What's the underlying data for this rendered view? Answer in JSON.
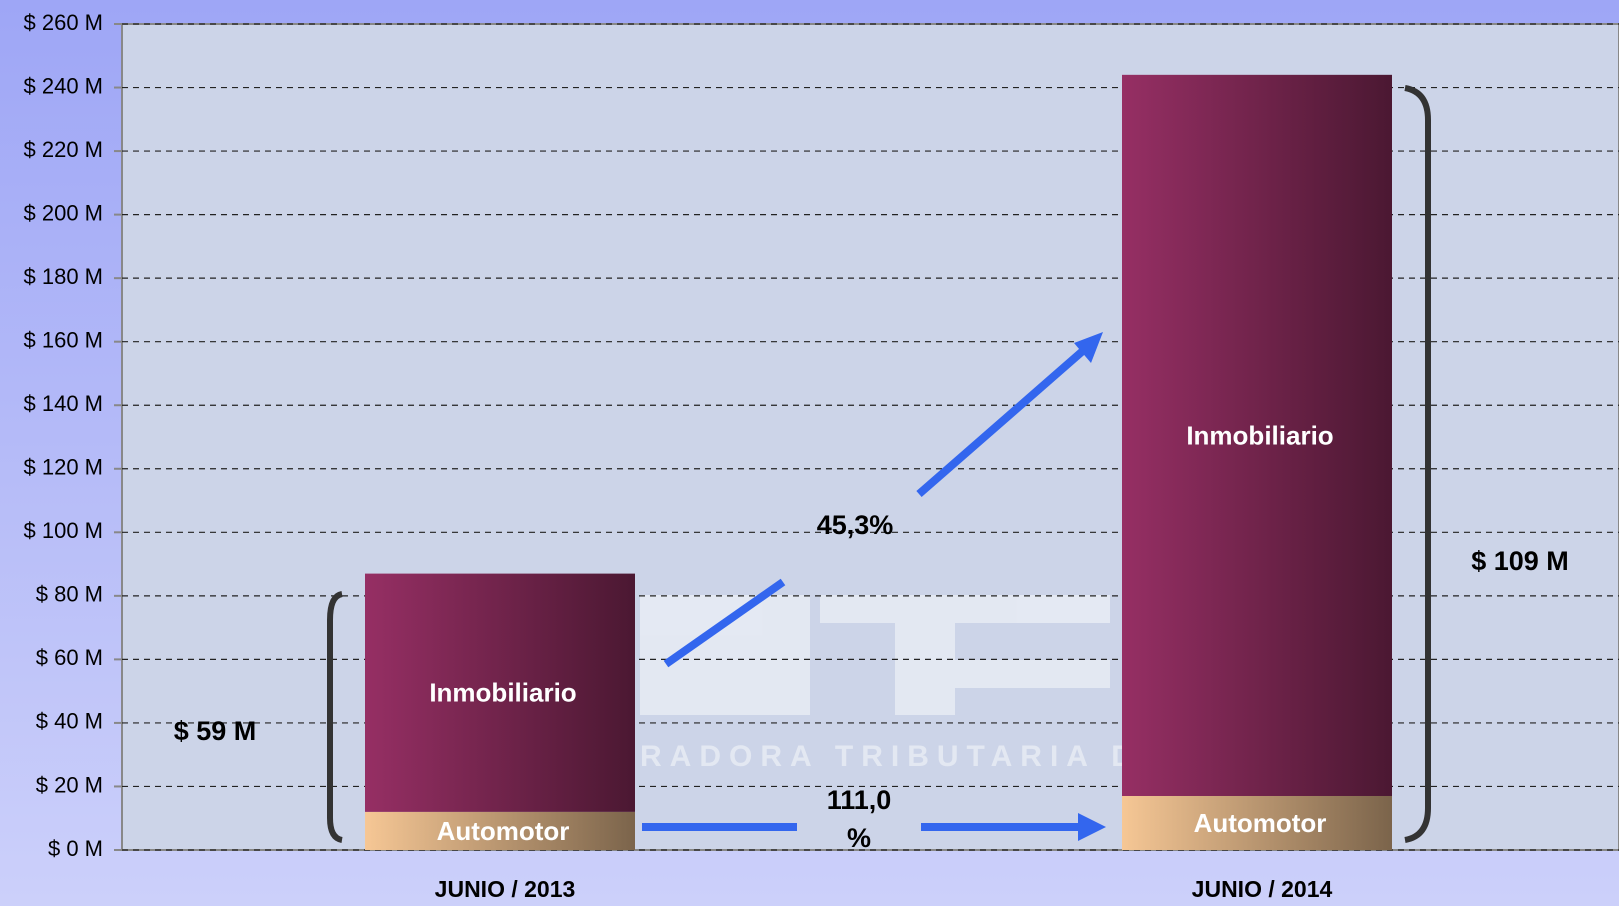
{
  "chart_data": {
    "type": "stacked_bar",
    "categories": [
      "JUNIO / 2013",
      "JUNIO / 2014"
    ],
    "series": [
      {
        "name": "Automotor",
        "color": "#f6c795",
        "values": [
          12,
          17
        ]
      },
      {
        "name": "Inmobiliario",
        "color": "#962f64",
        "values": [
          75,
          227
        ]
      }
    ],
    "ylim": [
      0,
      260
    ],
    "yticks": [
      {
        "value": 0,
        "label": "$ 0 M"
      },
      {
        "value": 20,
        "label": "$ 20 M"
      },
      {
        "value": 40,
        "label": "$ 40 M"
      },
      {
        "value": 60,
        "label": "$ 60 M"
      },
      {
        "value": 80,
        "label": "$ 80 M"
      },
      {
        "value": 100,
        "label": "$ 100 M"
      },
      {
        "value": 120,
        "label": "$ 120 M"
      },
      {
        "value": 140,
        "label": "$ 140 M"
      },
      {
        "value": 160,
        "label": "$ 160 M"
      },
      {
        "value": 180,
        "label": "$ 180 M"
      },
      {
        "value": 200,
        "label": "$ 200 M"
      },
      {
        "value": 220,
        "label": "$ 220 M"
      },
      {
        "value": 240,
        "label": "$ 240 M"
      },
      {
        "value": 260,
        "label": "$ 260 M"
      }
    ],
    "grid": true,
    "annotations": [
      "$ 59 M",
      "$ 109 M",
      "45,3%",
      "111,0",
      "%"
    ],
    "watermark": "RADORA TRIBUTARIA DE"
  }
}
